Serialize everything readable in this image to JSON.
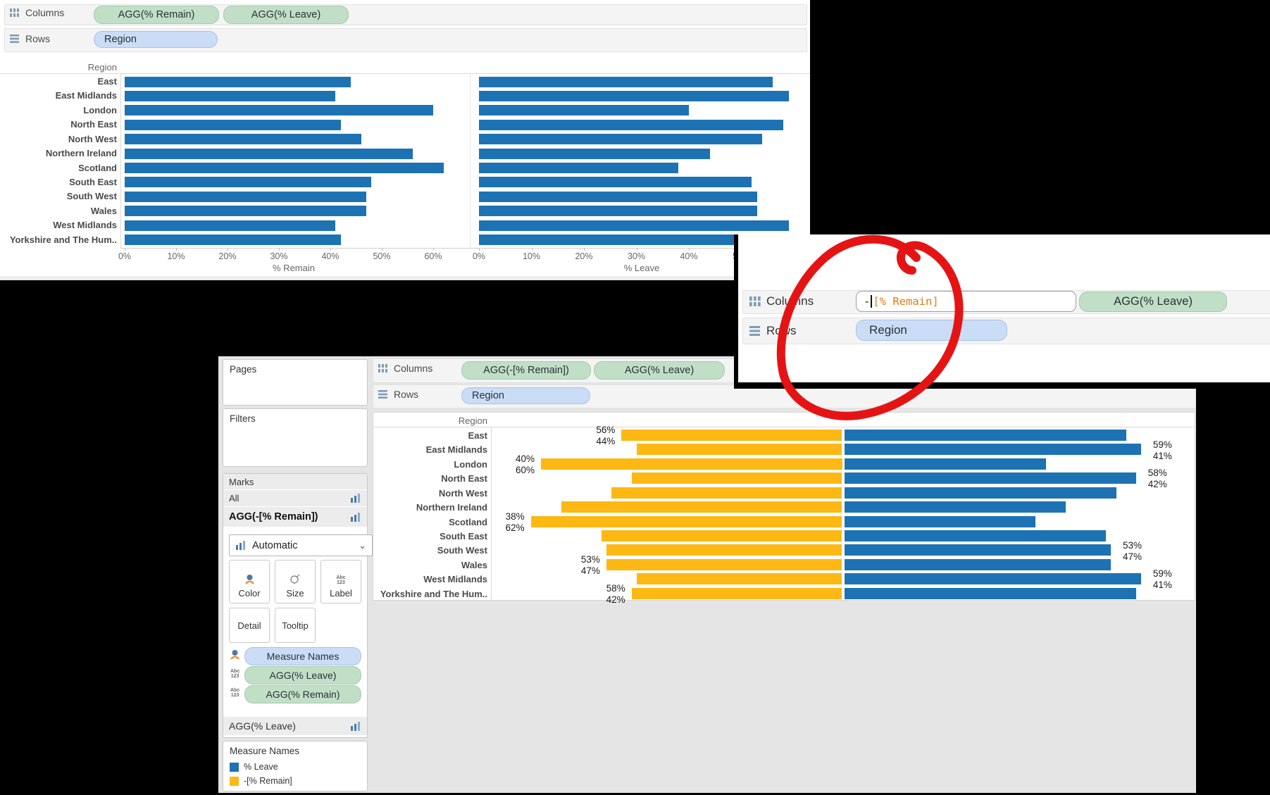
{
  "colors": {
    "leave_blue": "#1d72b3",
    "remain_yellow": "#fdb813",
    "pill_green": "#c1dfc6",
    "pill_blue": "#cbddf6",
    "formula_orange": "#e07b18",
    "annotation_red": "#e51414"
  },
  "top_panel": {
    "columns_shelf": {
      "label": "Columns",
      "pills": [
        "AGG(% Remain)",
        "AGG(% Leave)"
      ]
    },
    "rows_shelf": {
      "label": "Rows",
      "pills": [
        "Region"
      ]
    },
    "row_header": "Region",
    "axis_titles": [
      "% Remain",
      "% Leave"
    ]
  },
  "zoom_panel": {
    "columns_shelf": {
      "label": "Columns"
    },
    "rows_shelf": {
      "label": "Rows"
    },
    "formula_minus": "-",
    "formula_field": "[% Remain]",
    "columns_pill": "AGG(% Leave)",
    "rows_pill": "Region"
  },
  "bottom_panel": {
    "pages_label": "Pages",
    "filters_label": "Filters",
    "marks_label": "Marks",
    "marks_tabs": [
      {
        "label": "All",
        "bold": false
      },
      {
        "label": "AGG(-[% Remain])",
        "bold": true
      }
    ],
    "mark_type_dropdown": "Automatic",
    "buttons_row1": [
      "Color",
      "Size",
      "Label"
    ],
    "buttons_row2": [
      "Detail",
      "Tooltip"
    ],
    "mark_pills": [
      {
        "label": "Measure Names",
        "type": "blue",
        "icon": "color-legend-icon"
      },
      {
        "label": "AGG(% Leave)",
        "type": "green",
        "icon": "abc123-icon"
      },
      {
        "label": "AGG(% Remain)",
        "type": "green",
        "icon": "abc123-icon"
      }
    ],
    "collapsed_card": "AGG(% Leave)",
    "legend": {
      "title": "Measure Names",
      "items": [
        {
          "label": "% Leave",
          "color": "#1d72b3"
        },
        {
          "label": "-[% Remain]",
          "color": "#fdb813"
        }
      ]
    },
    "columns_shelf": {
      "label": "Columns",
      "pills": [
        "AGG(-[% Remain])",
        "AGG(% Leave)"
      ]
    },
    "rows_shelf": {
      "label": "Rows",
      "pills": [
        "Region"
      ]
    },
    "row_header": "Region"
  },
  "chart_data": [
    {
      "id": "top-side-by-side-bars",
      "type": "bar",
      "orientation": "horizontal",
      "row_header": "Region",
      "categories": [
        "East",
        "East Midlands",
        "London",
        "North East",
        "North West",
        "Northern Ireland",
        "Scotland",
        "South East",
        "South West",
        "Wales",
        "West Midlands",
        "Yorkshire and The Hum.."
      ],
      "series": [
        {
          "name": "% Remain",
          "values": [
            44,
            41,
            60,
            42,
            46,
            56,
            62,
            48,
            47,
            47,
            41,
            42
          ]
        },
        {
          "name": "% Leave",
          "values": [
            56,
            59,
            40,
            58,
            54,
            44,
            38,
            52,
            53,
            53,
            59,
            58
          ]
        }
      ],
      "xticks": [
        "0%",
        "10%",
        "20%",
        "30%",
        "40%",
        "50%",
        "60%"
      ],
      "xtick_values": [
        0,
        10,
        20,
        30,
        40,
        50,
        60
      ],
      "xlim": [
        0,
        65
      ],
      "bar_color": "#1d72b3",
      "xlabels": [
        "% Remain",
        "% Leave"
      ],
      "grid": false
    },
    {
      "id": "bottom-diverging-tornado",
      "type": "bar",
      "orientation": "horizontal-diverging",
      "row_header": "Region",
      "categories": [
        "East",
        "East Midlands",
        "London",
        "North East",
        "North West",
        "Northern Ireland",
        "Scotland",
        "South East",
        "South West",
        "Wales",
        "West Midlands",
        "Yorkshire and The Hum.."
      ],
      "series": [
        {
          "name": "-[% Remain]",
          "color": "#fdb813",
          "values": [
            -44,
            -41,
            -60,
            -42,
            -46,
            -56,
            -62,
            -48,
            -47,
            -47,
            -41,
            -42
          ]
        },
        {
          "name": "% Leave",
          "color": "#1d72b3",
          "values": [
            56,
            59,
            40,
            58,
            54,
            44,
            38,
            52,
            53,
            53,
            59,
            58
          ]
        }
      ],
      "mark_labels": [
        {
          "region": "East",
          "side": "left",
          "leave": "56%",
          "remain": "44%"
        },
        {
          "region": "East Midlands",
          "side": "right",
          "leave": "59%",
          "remain": "41%"
        },
        {
          "region": "London",
          "side": "left",
          "leave": "40%",
          "remain": "60%"
        },
        {
          "region": "North East",
          "side": "right",
          "leave": "58%",
          "remain": "42%"
        },
        {
          "region": "Scotland",
          "side": "left",
          "leave": "38%",
          "remain": "62%"
        },
        {
          "region": "South West",
          "side": "right",
          "leave": "53%",
          "remain": "47%"
        },
        {
          "region": "Wales",
          "side": "left",
          "leave": "53%",
          "remain": "47%"
        },
        {
          "region": "West Midlands",
          "side": "right",
          "leave": "59%",
          "remain": "41%"
        },
        {
          "region": "Yorkshire and The Hum..",
          "side": "left",
          "leave": "58%",
          "remain": "42%"
        }
      ],
      "xlim": [
        -70,
        70
      ],
      "grid": false
    }
  ]
}
